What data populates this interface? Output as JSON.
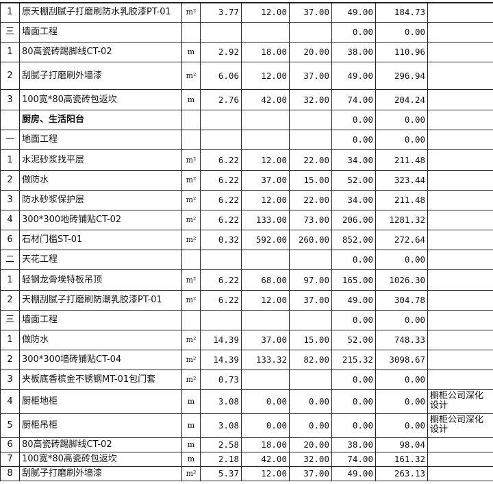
{
  "rows": [
    {
      "idx": "1",
      "name": "原天棚刮腻子打磨刷防水乳胶漆PT-01",
      "unit": "m²",
      "qty": "3.77",
      "mat": "12.00",
      "lab": "37.00",
      "price": "49.00",
      "total": "184.73",
      "remark": ""
    },
    {
      "idx": "三",
      "name": "墙面工程",
      "unit": "",
      "qty": "",
      "mat": "",
      "lab": "",
      "price": "0.00",
      "total": "0.00",
      "remark": ""
    },
    {
      "idx": "1",
      "name": "80高瓷砖踢脚线CT-02",
      "unit": "m",
      "qty": "2.92",
      "mat": "18.00",
      "lab": "20.00",
      "price": "38.00",
      "total": "110.96",
      "remark": ""
    },
    {
      "idx": "2",
      "name": "刮腻子打磨刷外墙漆",
      "unit": "m²",
      "qty": "6.06",
      "mat": "12.00",
      "lab": "37.00",
      "price": "49.00",
      "total": "296.94",
      "remark": ""
    },
    {
      "idx": "3",
      "name": "100宽*80高瓷砖包返坎",
      "unit": "m",
      "qty": "2.76",
      "mat": "42.00",
      "lab": "32.00",
      "price": "74.00",
      "total": "204.24",
      "remark": ""
    },
    {
      "idx": "",
      "name": "厨房、生活阳台",
      "unit": "",
      "qty": "",
      "mat": "",
      "lab": "",
      "price": "0.00",
      "total": "0.00",
      "remark": "",
      "bold": true
    },
    {
      "idx": "一",
      "name": "地面工程",
      "unit": "",
      "qty": "",
      "mat": "",
      "lab": "",
      "price": "0.00",
      "total": "0.00",
      "remark": ""
    },
    {
      "idx": "1",
      "name": "水泥砂浆找平层",
      "unit": "m²",
      "qty": "6.22",
      "mat": "12.00",
      "lab": "22.00",
      "price": "34.00",
      "total": "211.48",
      "remark": ""
    },
    {
      "idx": "2",
      "name": "做防水",
      "unit": "m²",
      "qty": "6.22",
      "mat": "37.00",
      "lab": "15.00",
      "price": "52.00",
      "total": "323.44",
      "remark": ""
    },
    {
      "idx": "3",
      "name": "防水砂浆保护层",
      "unit": "m²",
      "qty": "6.22",
      "mat": "12.00",
      "lab": "22.00",
      "price": "34.00",
      "total": "211.48",
      "remark": ""
    },
    {
      "idx": "4",
      "name": "300*300地砖铺贴CT-02",
      "unit": "m²",
      "qty": "6.22",
      "mat": "133.00",
      "lab": "73.00",
      "price": "206.00",
      "total": "1281.32",
      "remark": ""
    },
    {
      "idx": "6",
      "name": "石材门槛ST-01",
      "unit": "m²",
      "qty": "0.32",
      "mat": "592.00",
      "lab": "260.00",
      "price": "852.00",
      "total": "272.64",
      "remark": ""
    },
    {
      "idx": "二",
      "name": "天花工程",
      "unit": "",
      "qty": "",
      "mat": "",
      "lab": "",
      "price": "0.00",
      "total": "0.00",
      "remark": ""
    },
    {
      "idx": "1",
      "name": "轻钢龙骨埃特板吊顶",
      "unit": "m²",
      "qty": "6.22",
      "mat": "68.00",
      "lab": "97.00",
      "price": "165.00",
      "total": "1026.30",
      "remark": ""
    },
    {
      "idx": "2",
      "name": "天棚刮腻子打磨刷防潮乳胶漆PT-01",
      "unit": "m²",
      "qty": "6.22",
      "mat": "12.00",
      "lab": "37.00",
      "price": "49.00",
      "total": "304.78",
      "remark": ""
    },
    {
      "idx": "三",
      "name": "墙面工程",
      "unit": "",
      "qty": "",
      "mat": "",
      "lab": "",
      "price": "0.00",
      "total": "0.00",
      "remark": ""
    },
    {
      "idx": "1",
      "name": "做防水",
      "unit": "m²",
      "qty": "14.39",
      "mat": "37.00",
      "lab": "15.00",
      "price": "52.00",
      "total": "748.33",
      "remark": ""
    },
    {
      "idx": "2",
      "name": "300*300墙砖铺贴CT-04",
      "unit": "m²",
      "qty": "14.39",
      "mat": "133.32",
      "lab": "82.00",
      "price": "215.32",
      "total": "3098.67",
      "remark": ""
    },
    {
      "idx": "3",
      "name": "夹板底香槟金不锈钢MT-01包门套",
      "unit": "m²",
      "qty": "0.73",
      "mat": "",
      "lab": "",
      "price": "0.00",
      "total": "0.00",
      "remark": ""
    },
    {
      "idx": "4",
      "name": "厨柜地柜",
      "unit": "m",
      "qty": "3.08",
      "mat": "0.00",
      "lab": "0.00",
      "price": "0.00",
      "total": "0.00",
      "remark": "橱柜公司深化设计"
    },
    {
      "idx": "5",
      "name": "厨柜吊柜",
      "unit": "m",
      "qty": "3.08",
      "mat": "0.00",
      "lab": "0.00",
      "price": "0.00",
      "total": "0.00",
      "remark": "橱柜公司深化设计"
    },
    {
      "idx": "6",
      "name": "80高瓷砖踢脚线CT-02",
      "unit": "m",
      "qty": "2.58",
      "mat": "18.00",
      "lab": "20.00",
      "price": "38.00",
      "total": "98.04",
      "remark": ""
    },
    {
      "idx": "7",
      "name": "100宽*80高瓷砖包返坎",
      "unit": "m",
      "qty": "2.18",
      "mat": "42.00",
      "lab": "32.00",
      "price": "74.00",
      "total": "161.32",
      "remark": ""
    },
    {
      "idx": "8",
      "name": "刮腻子打磨刷外墙漆",
      "unit": "m²",
      "qty": "5.37",
      "mat": "12.00",
      "lab": "37.00",
      "price": "49.00",
      "total": "263.13",
      "remark": ""
    }
  ]
}
